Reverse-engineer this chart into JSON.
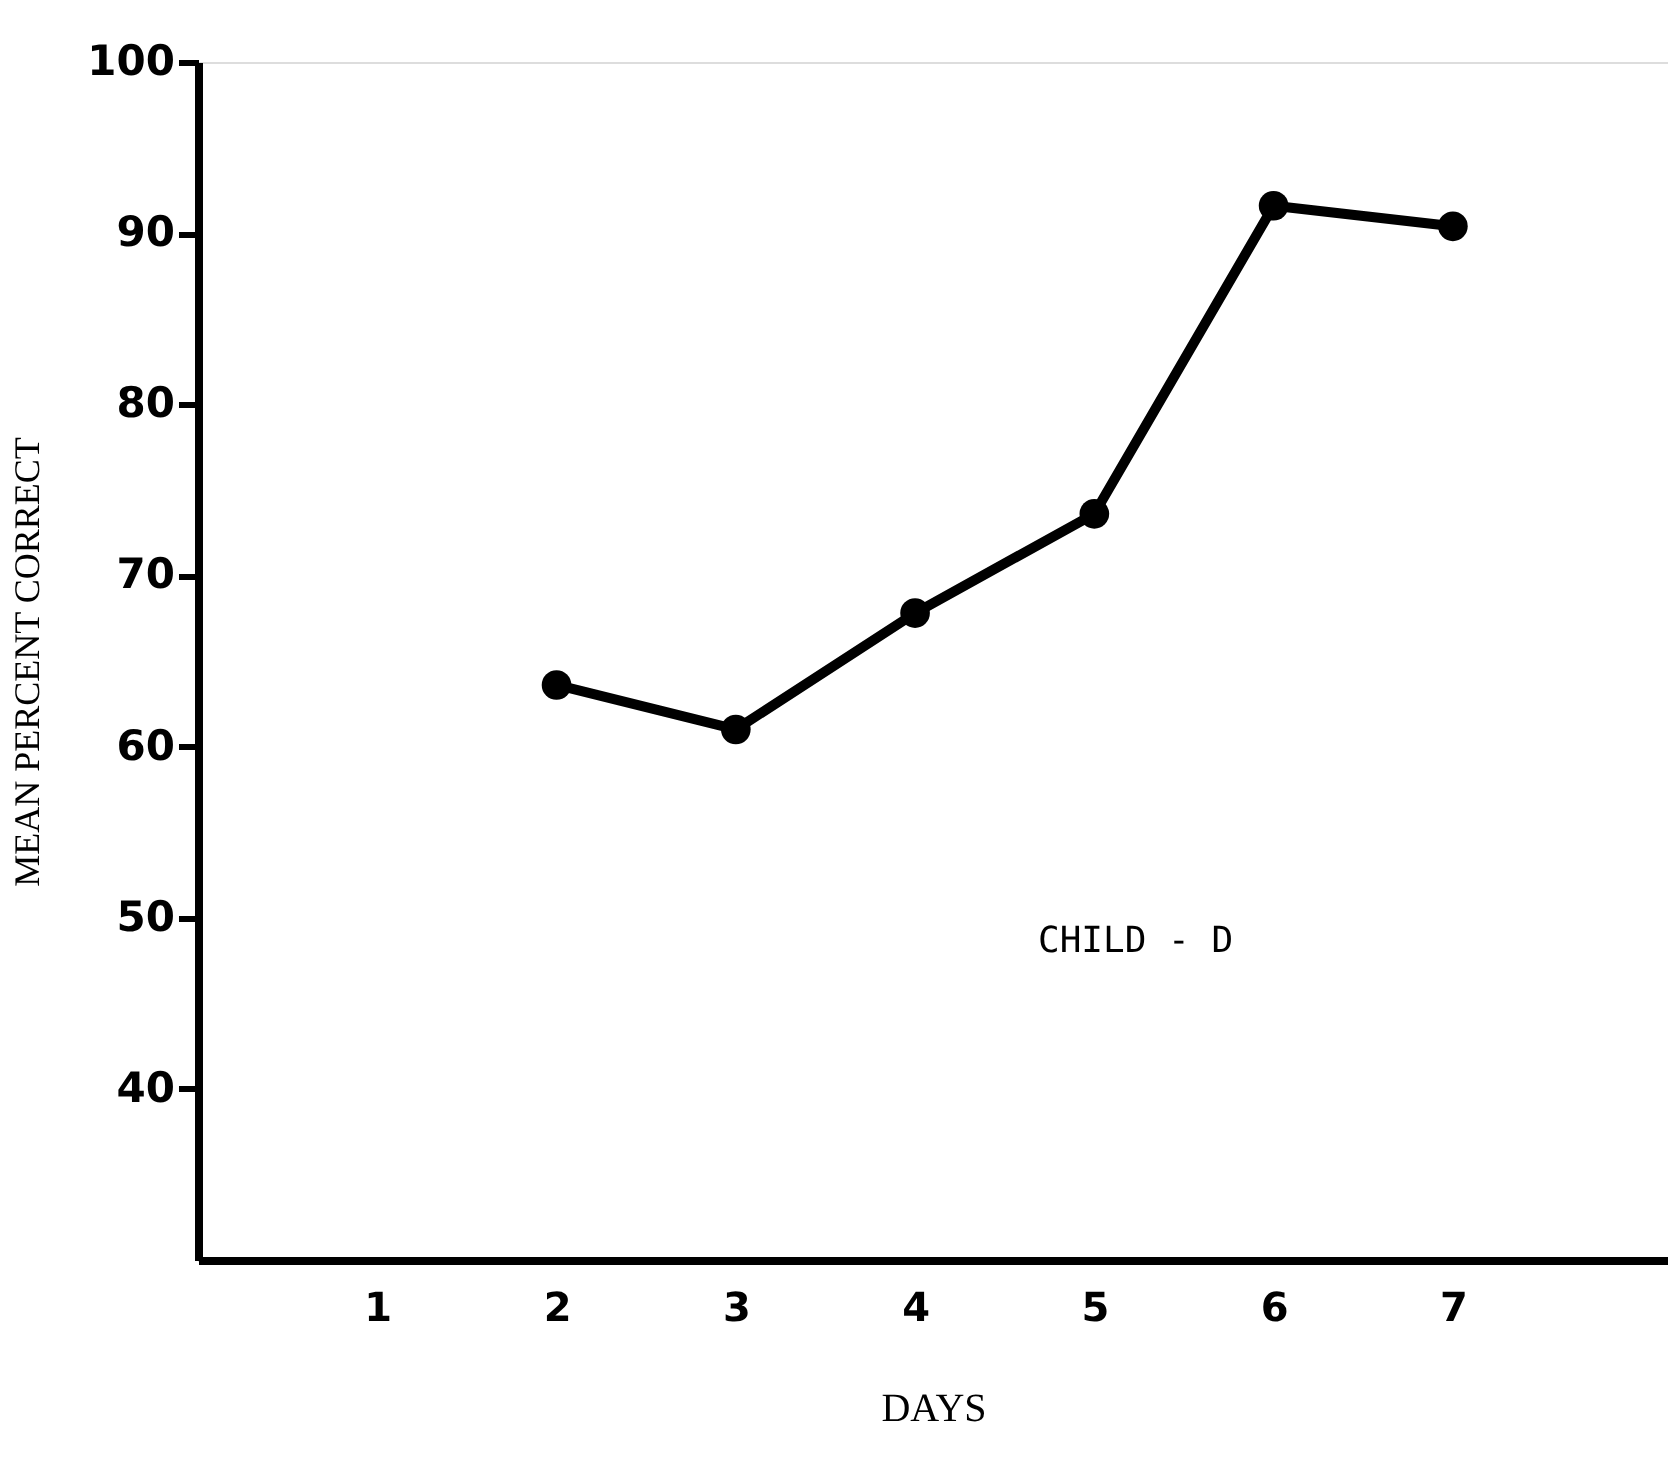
{
  "chart_data": {
    "type": "line",
    "xlabel": "DAYS",
    "ylabel": "MEAN PERCENT CORRECT",
    "x": [
      2,
      3,
      4,
      5,
      6,
      7
    ],
    "series": [
      {
        "color": "#000000",
        "values": [
          63.6,
          61,
          67.8,
          73.6,
          91.6,
          90.4
        ]
      }
    ],
    "xlim": [
      0,
      8.2
    ],
    "xticks": [
      1,
      2,
      3,
      4,
      5,
      6,
      7
    ],
    "ylim": [
      30,
      100
    ],
    "yticks": [
      40,
      50,
      60,
      70,
      80,
      90,
      100
    ],
    "marker": "circle",
    "line_style": "solid",
    "grid": false,
    "annotations": [
      "CHILD - D"
    ]
  }
}
